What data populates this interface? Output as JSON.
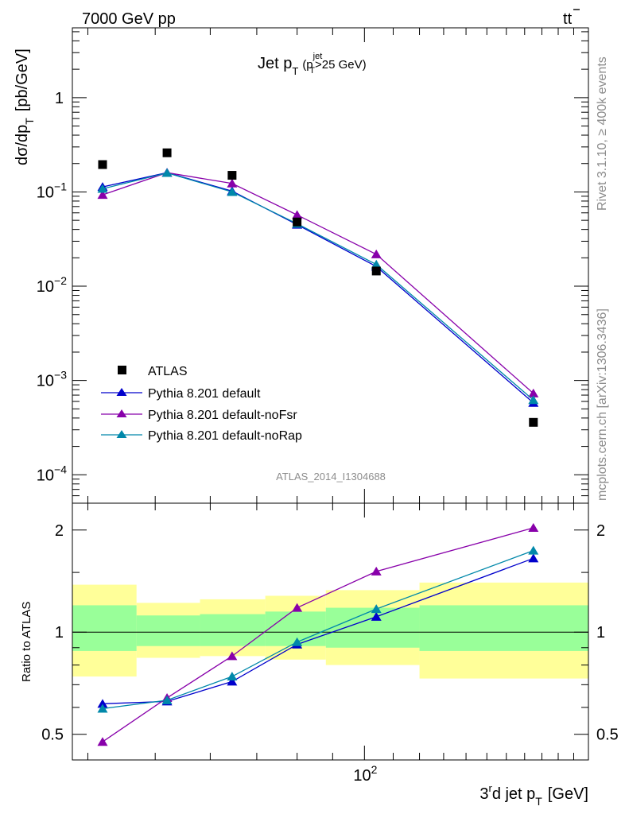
{
  "header": {
    "left": "7000 GeV pp",
    "right": "t",
    "right_bar": "t"
  },
  "side_text": {
    "top": "Rivet 3.1.10, ≥ 400k events",
    "bottom": "mcplots.cern.ch [arXiv:1306.3436]"
  },
  "analysis_id": "ATLAS_2014_I1304688",
  "colors": {
    "data": "#000000",
    "default": "#0000cc",
    "noFsr": "#8800aa",
    "noRap": "#0088aa",
    "band_outer": "#ffff99",
    "band_inner": "#99ff99"
  },
  "chart_data": [
    {
      "type": "scatter",
      "panel": "main",
      "title": {
        "main": "Jet p",
        "main_sub": "T",
        "open": "(p",
        "sup": "jet",
        "sub": "T",
        "rest": ">25 GeV)"
      },
      "ylabel": {
        "main": "dσ/dp",
        "sub": "T",
        "unit": "[pb/GeV]"
      },
      "yscale": "log",
      "ylim": [
        5e-05,
        5.5
      ],
      "xscale": "log",
      "xlim": [
        38,
        210
      ],
      "y_ticks": [
        {
          "value": 1,
          "base": "1",
          "exp": ""
        },
        {
          "value": 0.1,
          "base": "10",
          "exp": "−1"
        },
        {
          "value": 0.01,
          "base": "10",
          "exp": "−2"
        },
        {
          "value": 0.001,
          "base": "10",
          "exp": "−3"
        },
        {
          "value": 0.0001,
          "base": "10",
          "exp": "−4"
        }
      ],
      "legend": {
        "position": "bottom-left",
        "entries": [
          {
            "key": "data",
            "label": "ATLAS",
            "marker": "square"
          },
          {
            "key": "default",
            "label": "Pythia 8.201 default",
            "marker": "triangle"
          },
          {
            "key": "noFsr",
            "label": "Pythia 8.201 default-noFsr",
            "marker": "triangle"
          },
          {
            "key": "noRap",
            "label": "Pythia 8.201 default-noRap",
            "marker": "triangle"
          }
        ]
      },
      "data_points": {
        "x": [
          42,
          52,
          64.5,
          80,
          104,
          175
        ],
        "y": [
          0.195,
          0.26,
          0.15,
          0.048,
          0.0145,
          0.00036
        ]
      },
      "series": [
        {
          "key": "default",
          "name": "Pythia 8.201 default",
          "x": [
            42,
            52,
            64.5,
            80,
            104,
            175
          ],
          "y": [
            0.113,
            0.16,
            0.102,
            0.045,
            0.0162,
            0.00058
          ]
        },
        {
          "key": "noFsr",
          "name": "Pythia 8.201 default-noFsr",
          "x": [
            42,
            52,
            64.5,
            80,
            104,
            175
          ],
          "y": [
            0.093,
            0.16,
            0.123,
            0.057,
            0.0218,
            0.00073
          ]
        },
        {
          "key": "noRap",
          "name": "Pythia 8.201 default-noRap",
          "x": [
            42,
            52,
            64.5,
            80,
            104,
            175
          ],
          "y": [
            0.108,
            0.159,
            0.1,
            0.046,
            0.017,
            0.00062
          ]
        }
      ]
    },
    {
      "type": "line",
      "panel": "ratio",
      "ylabel": "Ratio to ATLAS",
      "yscale": "log",
      "ylim": [
        0.42,
        2.4
      ],
      "xscale": "log",
      "xlim": [
        38,
        210
      ],
      "y_ticks": [
        {
          "value": 2,
          "label": "2"
        },
        {
          "value": 1,
          "label": "1"
        },
        {
          "value": 0.5,
          "label": "0.5"
        }
      ],
      "x_ticks": [
        {
          "value": 100,
          "base": "10",
          "exp": "2"
        }
      ],
      "xlabel": {
        "pre": "3",
        "sup": "r",
        "mid": "d jet p",
        "sub": "T",
        "unit": "[GeV]"
      },
      "reference_line": 1,
      "bands": [
        {
          "x_lo": 38,
          "x_hi": 47,
          "outer": [
            0.74,
            1.38
          ],
          "inner": [
            0.88,
            1.2
          ]
        },
        {
          "x_lo": 47,
          "x_hi": 58,
          "outer": [
            0.84,
            1.22
          ],
          "inner": [
            0.91,
            1.12
          ]
        },
        {
          "x_lo": 58,
          "x_hi": 72,
          "outer": [
            0.85,
            1.25
          ],
          "inner": [
            0.91,
            1.13
          ]
        },
        {
          "x_lo": 72,
          "x_hi": 88,
          "outer": [
            0.83,
            1.28
          ],
          "inner": [
            0.91,
            1.15
          ]
        },
        {
          "x_lo": 88,
          "x_hi": 120,
          "outer": [
            0.8,
            1.33
          ],
          "inner": [
            0.9,
            1.18
          ]
        },
        {
          "x_lo": 120,
          "x_hi": 210,
          "outer": [
            0.73,
            1.4
          ],
          "inner": [
            0.88,
            1.2
          ]
        }
      ],
      "series": [
        {
          "key": "default",
          "name": "Pythia 8.201 default",
          "x": [
            42,
            52,
            64.5,
            80,
            104,
            175
          ],
          "y": [
            0.615,
            0.625,
            0.715,
            0.92,
            1.11,
            1.65
          ]
        },
        {
          "key": "noFsr",
          "name": "Pythia 8.201 default-noFsr",
          "x": [
            42,
            52,
            64.5,
            80,
            104,
            175
          ],
          "y": [
            0.475,
            0.64,
            0.85,
            1.18,
            1.51,
            2.03
          ]
        },
        {
          "key": "noRap",
          "name": "Pythia 8.201 default-noRap",
          "x": [
            42,
            52,
            64.5,
            80,
            104,
            175
          ],
          "y": [
            0.595,
            0.63,
            0.74,
            0.935,
            1.17,
            1.74
          ]
        }
      ]
    }
  ]
}
